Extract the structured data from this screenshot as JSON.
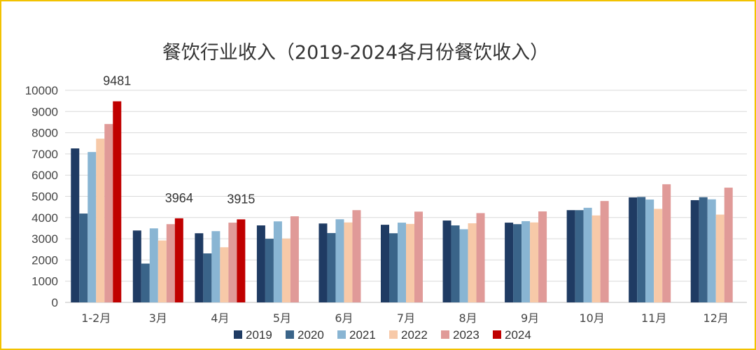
{
  "chart_data": {
    "type": "bar",
    "title": "餐饮行业收入（2019-2024各月份餐饮收入）",
    "categories": [
      "1-2月",
      "3月",
      "4月",
      "5月",
      "6月",
      "7月",
      "8月",
      "9月",
      "10月",
      "11月",
      "12月"
    ],
    "ylim": [
      0,
      10000
    ],
    "yticks": [
      0,
      1000,
      2000,
      3000,
      4000,
      5000,
      6000,
      7000,
      8000,
      9000,
      10000
    ],
    "grid": true,
    "legend": "bottom",
    "series": [
      {
        "name": "2019",
        "color": "#1f3b63",
        "values": [
          7260,
          3390,
          3260,
          3630,
          3720,
          3660,
          3860,
          3760,
          4350,
          4950,
          4820
        ]
      },
      {
        "name": "2020",
        "color": "#3a6489",
        "values": [
          4190,
          1830,
          2310,
          3000,
          3270,
          3260,
          3630,
          3690,
          4350,
          4970,
          4960
        ]
      },
      {
        "name": "2021",
        "color": "#89b5d3",
        "values": [
          7090,
          3490,
          3360,
          3820,
          3920,
          3760,
          3450,
          3830,
          4460,
          4850,
          4860
        ]
      },
      {
        "name": "2022",
        "color": "#f7c9a8",
        "values": [
          7720,
          2920,
          2600,
          3010,
          3770,
          3700,
          3730,
          3770,
          4100,
          4410,
          4140
        ]
      },
      {
        "name": "2023",
        "color": "#e09a98",
        "values": [
          8410,
          3690,
          3760,
          4060,
          4350,
          4280,
          4210,
          4290,
          4780,
          5570,
          5410
        ]
      },
      {
        "name": "2024",
        "color": "#c00000",
        "values": [
          9481,
          3964,
          3915,
          null,
          null,
          null,
          null,
          null,
          null,
          null,
          null
        ]
      }
    ],
    "data_labels": [
      {
        "category": "1-2月",
        "series": "2024",
        "text": "9481"
      },
      {
        "category": "3月",
        "series": "2024",
        "text": "3964"
      },
      {
        "category": "4月",
        "series": "2024",
        "text": "3915"
      }
    ]
  }
}
